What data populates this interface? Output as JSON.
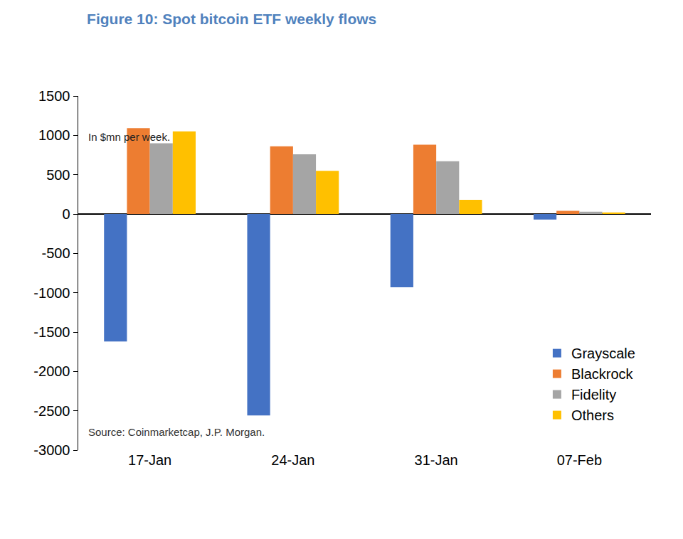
{
  "chart_data": {
    "type": "bar",
    "title": "Figure 10: Spot bitcoin ETF weekly flows",
    "subtitle": "In $mn per week.",
    "source": "Source: Coinmarketcap, J.P. Morgan.",
    "categories": [
      "17-Jan",
      "24-Jan",
      "31-Jan",
      "07-Feb"
    ],
    "series": [
      {
        "name": "Grayscale",
        "color": "#4472c4",
        "values": [
          -1620,
          -2560,
          -930,
          -70
        ]
      },
      {
        "name": "Blackrock",
        "color": "#ed7d31",
        "values": [
          1090,
          860,
          880,
          40
        ]
      },
      {
        "name": "Fidelity",
        "color": "#a5a5a5",
        "values": [
          900,
          760,
          670,
          30
        ]
      },
      {
        "name": "Others",
        "color": "#ffc000",
        "values": [
          1050,
          550,
          180,
          20
        ]
      }
    ],
    "ylim": [
      -3000,
      1500
    ],
    "yticks": [
      -3000,
      -2500,
      -2000,
      -1500,
      -1000,
      -500,
      0,
      500,
      1000,
      1500
    ],
    "grid": false,
    "legend": "lower right"
  }
}
